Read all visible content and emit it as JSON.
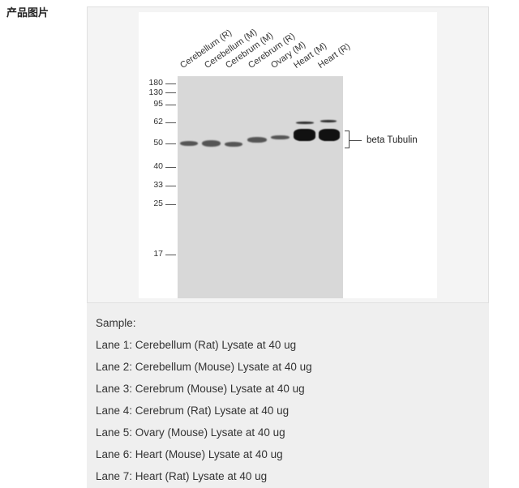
{
  "heading": "产品图片",
  "figure": {
    "lanes": [
      "Cerebellum (R)",
      "Cerebellum (M)",
      "Cerebrum (M)",
      "Cerebrum (R)",
      "Ovary (M)",
      "Heart (M)",
      "Heart (R)"
    ],
    "markers": [
      "180",
      "130",
      "95",
      "62",
      "50",
      "40",
      "33",
      "25",
      "17"
    ],
    "target": "beta Tubulin"
  },
  "caption": {
    "title": "Sample:",
    "lines": [
      "Lane 1: Cerebellum (Rat) Lysate at 40 ug",
      "Lane 2: Cerebellum (Mouse) Lysate at 40 ug",
      "Lane 3: Cerebrum (Mouse) Lysate at 40 ug",
      "Lane 4: Cerebrum (Rat) Lysate at 40 ug",
      "Lane 5: Ovary (Mouse) Lysate at 40 ug",
      "Lane 6: Heart (Mouse) Lysate at 40 ug",
      "Lane 7: Heart (Rat) Lysate at 40 ug"
    ]
  }
}
